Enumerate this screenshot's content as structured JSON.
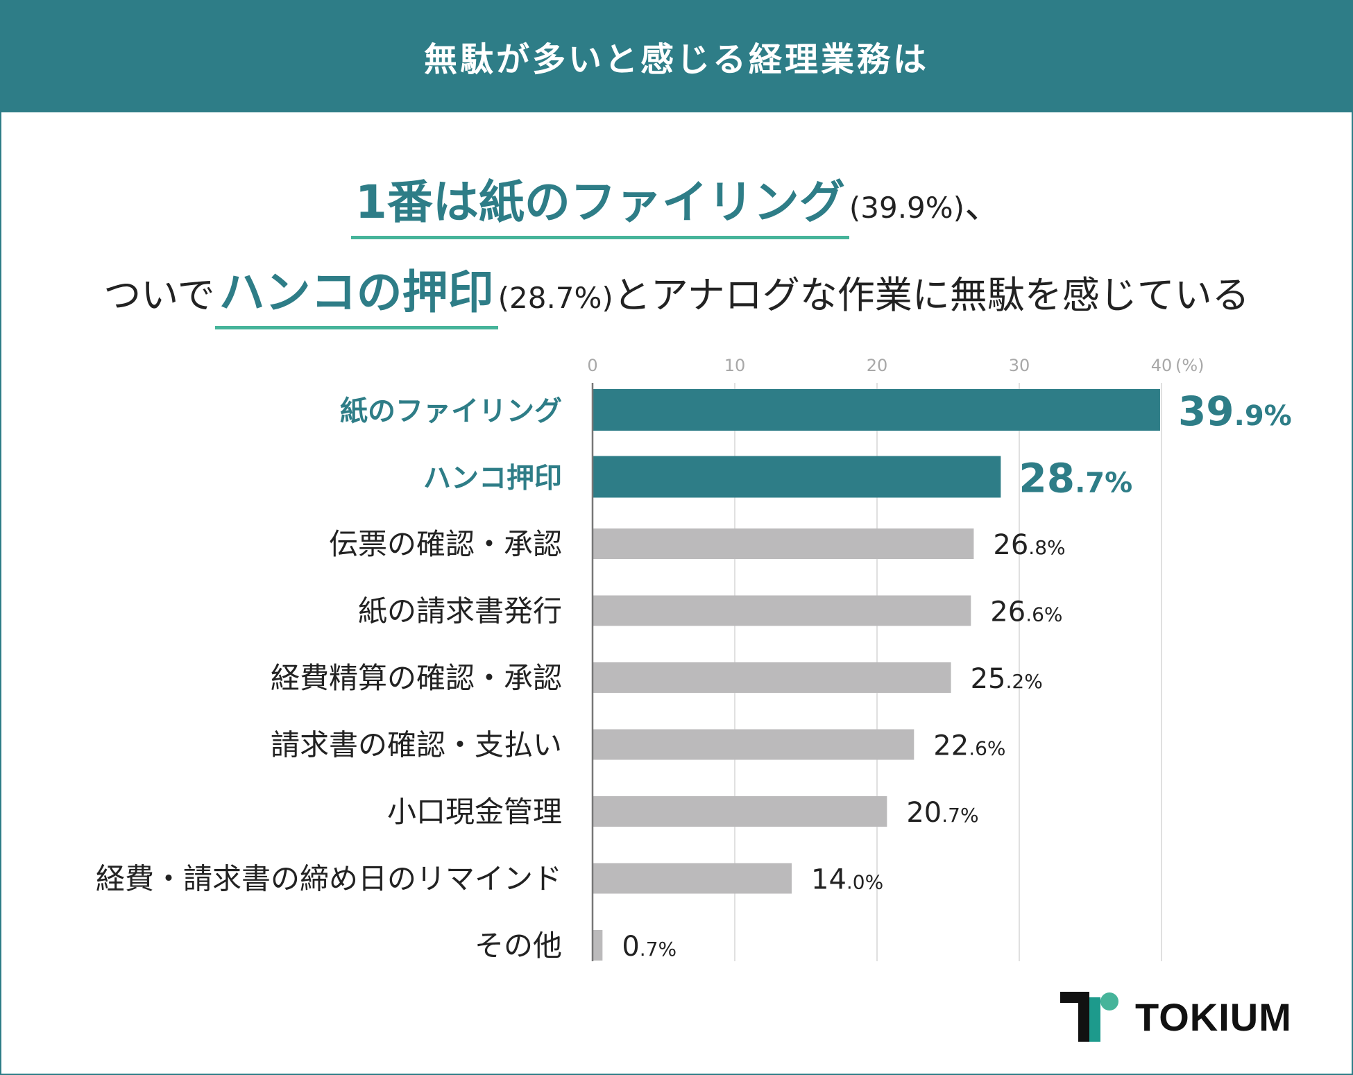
{
  "header": {
    "title": "無駄が多いと感じる経理業務は"
  },
  "headline": {
    "line1_highlight": "1番は紙のファイリング",
    "line1_pct": "(39.9%)",
    "line1_suffix": "、",
    "line2_prefix": "ついで",
    "line2_highlight": "ハンコの押印",
    "line2_pct": "(28.7%)",
    "line2_suffix": "とアナログな作業に無駄を感じている"
  },
  "colors": {
    "brand": "#2e7d87",
    "accent": "#46b49a",
    "gray_bar": "#bbbabb"
  },
  "brand_logo": {
    "text": "TOKIUM"
  },
  "chart_data": {
    "type": "bar",
    "orientation": "horizontal",
    "xlim": [
      0,
      40
    ],
    "xticks": [
      "0",
      "10",
      "20",
      "30",
      "40"
    ],
    "unit_label": "(%)",
    "grid": true,
    "categories": [
      "紙のファイリング",
      "ハンコ押印",
      "伝票の確認・承認",
      "紙の請求書発行",
      "経費精算の確認・承認",
      "請求書の確認・支払い",
      "小口現金管理",
      "経費・請求書の締め日のリマインド",
      "その他"
    ],
    "values": [
      39.9,
      28.7,
      26.8,
      26.6,
      25.2,
      22.6,
      20.7,
      14.0,
      0.7
    ],
    "value_labels": [
      {
        "int": "39",
        "dec": ".9%"
      },
      {
        "int": "28",
        "dec": ".7%"
      },
      {
        "int": "26",
        "dec": ".8%"
      },
      {
        "int": "26",
        "dec": ".6%"
      },
      {
        "int": "25",
        "dec": ".2%"
      },
      {
        "int": "22",
        "dec": ".6%"
      },
      {
        "int": "20",
        "dec": ".7%"
      },
      {
        "int": "14",
        "dec": ".0%"
      },
      {
        "int": "0",
        "dec": ".7%"
      }
    ],
    "highlighted": [
      true,
      true,
      false,
      false,
      false,
      false,
      false,
      false,
      false
    ]
  }
}
